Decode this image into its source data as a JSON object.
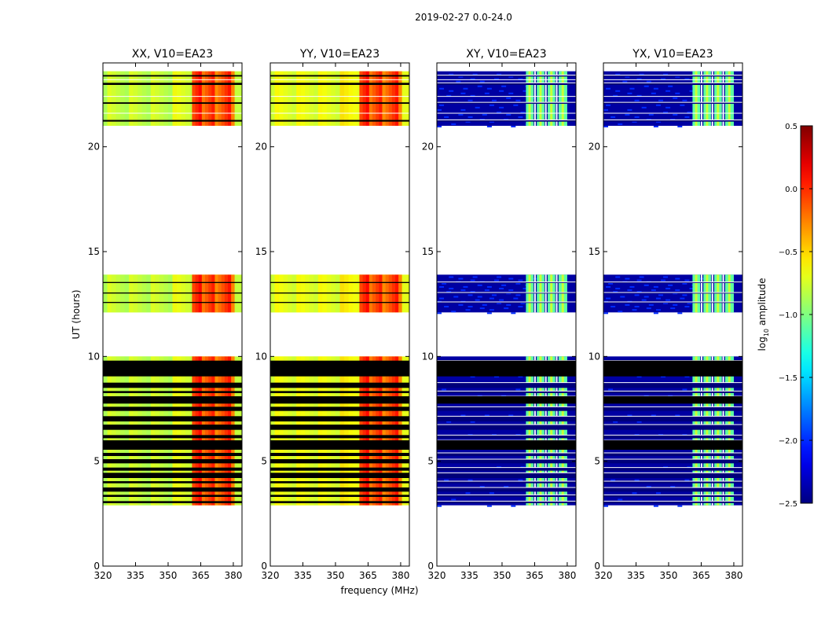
{
  "figure": {
    "title": "2019-02-27 0.0-24.0",
    "xlabel": "frequency (MHz)",
    "ylabel": "UT (hours)"
  },
  "colorbar": {
    "label_main": "log",
    "label_sub": "10",
    "label_tail": " amplitude",
    "range": [
      -2.5,
      0.5
    ],
    "ticks": [
      {
        "value": 0.5,
        "label": "0.5"
      },
      {
        "value": 0.0,
        "label": "0.0"
      },
      {
        "value": -0.5,
        "label": "−0.5"
      },
      {
        "value": -1.0,
        "label": "−1.0"
      },
      {
        "value": -1.5,
        "label": "−1.5"
      },
      {
        "value": -2.0,
        "label": "−2.0"
      },
      {
        "value": -2.5,
        "label": "−2.5"
      }
    ],
    "colormap": "jet"
  },
  "chart_data": [
    {
      "type": "heatmap",
      "title": "XX, V10=EA23",
      "polarization": "XX",
      "xlabel": "frequency (MHz)",
      "ylabel": "UT (hours)",
      "xlim": [
        320,
        384
      ],
      "ylim": [
        0,
        24
      ],
      "xticks": [
        320,
        335,
        350,
        365,
        380
      ],
      "yticks": [
        0,
        5,
        10,
        15,
        20
      ],
      "base_log_amplitude": -0.8,
      "peak_log_amplitude": 0.1,
      "rfi_band_mhz": [
        361,
        380
      ]
    },
    {
      "type": "heatmap",
      "title": "YY, V10=EA23",
      "polarization": "YY",
      "xlabel": "frequency (MHz)",
      "ylabel": "UT (hours)",
      "xlim": [
        320,
        384
      ],
      "ylim": [
        0,
        24
      ],
      "xticks": [
        320,
        335,
        350,
        365,
        380
      ],
      "yticks": [
        0,
        5,
        10,
        15,
        20
      ],
      "base_log_amplitude": -0.7,
      "peak_log_amplitude": 0.1,
      "rfi_band_mhz": [
        361,
        380
      ]
    },
    {
      "type": "heatmap",
      "title": "XY, V10=EA23",
      "polarization": "XY",
      "xlabel": "frequency (MHz)",
      "ylabel": "UT (hours)",
      "xlim": [
        320,
        384
      ],
      "ylim": [
        0,
        24
      ],
      "xticks": [
        320,
        335,
        350,
        365,
        380
      ],
      "yticks": [
        0,
        5,
        10,
        15,
        20
      ],
      "base_log_amplitude": -2.4,
      "peak_log_amplitude": -1.0,
      "rfi_band_mhz": [
        361,
        380
      ]
    },
    {
      "type": "heatmap",
      "title": "YX, V10=EA23",
      "polarization": "YX",
      "xlabel": "frequency (MHz)",
      "ylabel": "UT (hours)",
      "xlim": [
        320,
        384
      ],
      "ylim": [
        0,
        24
      ],
      "xticks": [
        320,
        335,
        350,
        365,
        380
      ],
      "yticks": [
        0,
        5,
        10,
        15,
        20
      ],
      "base_log_amplitude": -2.4,
      "peak_log_amplitude": -1.0,
      "rfi_band_mhz": [
        361,
        380
      ]
    }
  ],
  "time_coverage": {
    "observed_blocks_ut": [
      [
        21.0,
        23.6
      ],
      [
        12.1,
        13.9
      ],
      [
        2.9,
        10.0
      ]
    ],
    "flagged_rows_ut": [
      [
        21.2,
        21.28
      ],
      [
        22.05,
        22.12
      ],
      [
        22.95,
        23.05
      ],
      [
        23.35,
        23.42
      ],
      [
        12.55,
        12.6
      ],
      [
        13.0,
        13.05
      ],
      [
        13.5,
        13.55
      ],
      [
        9.05,
        9.8
      ],
      [
        8.5,
        8.75
      ],
      [
        8.25,
        8.35
      ],
      [
        7.75,
        8.1
      ],
      [
        7.4,
        7.6
      ],
      [
        6.9,
        7.15
      ],
      [
        6.5,
        6.75
      ],
      [
        6.1,
        6.25
      ],
      [
        5.55,
        6.0
      ],
      [
        5.25,
        5.4
      ],
      [
        4.9,
        5.1
      ],
      [
        4.55,
        4.7
      ],
      [
        4.2,
        4.45
      ],
      [
        3.95,
        4.05
      ],
      [
        3.55,
        3.75
      ],
      [
        3.3,
        3.4
      ],
      [
        3.0,
        3.1
      ]
    ],
    "flagged_blocks_ut": [
      [
        9.05,
        9.8
      ],
      [
        7.75,
        8.1
      ],
      [
        5.55,
        6.0
      ]
    ]
  }
}
